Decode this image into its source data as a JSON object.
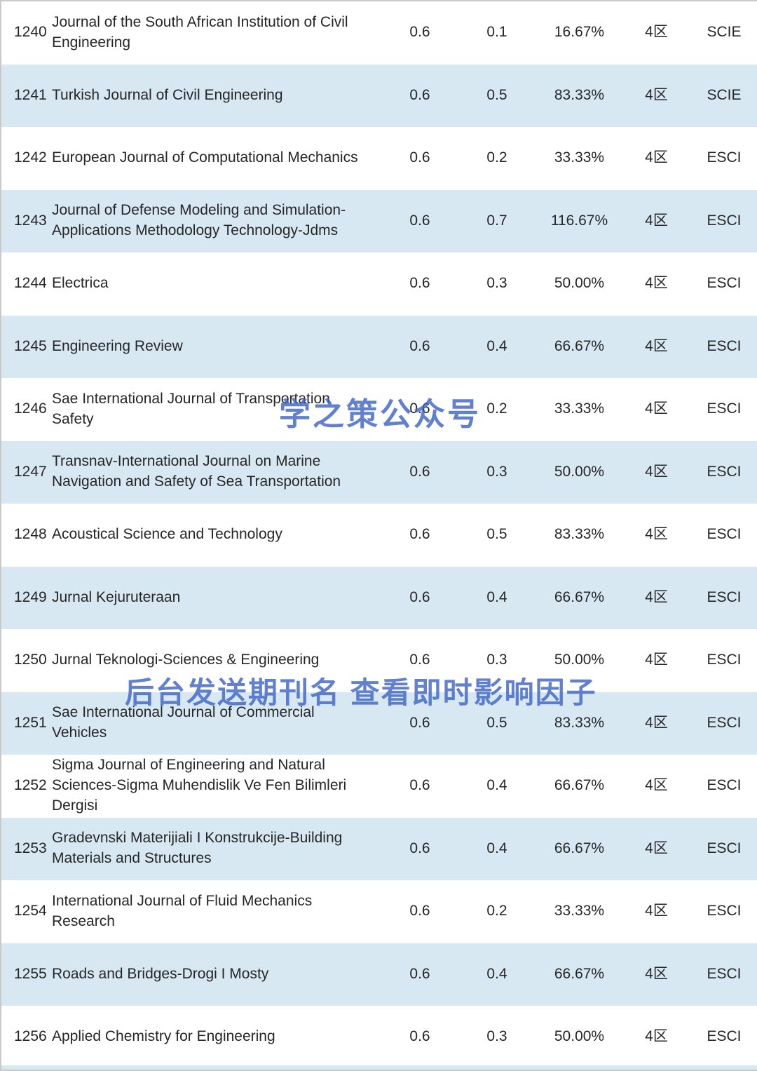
{
  "colors": {
    "stripe_blue": "#d7e8f3",
    "row_white": "#ffffff",
    "watermark_blue": "#3e65c6",
    "text": "#262626"
  },
  "watermarks": {
    "center_watermark": "学之策公众号",
    "lower_watermark": "后台发送期刊名 查看即时影响因子"
  },
  "table": {
    "rows": [
      {
        "rank": "1240",
        "name": "Journal of the South African Institution of Civil Engineering",
        "value1": "0.6",
        "value2": "0.1",
        "percent": "16.67%",
        "zone": "4区",
        "index": "SCIE"
      },
      {
        "rank": "1241",
        "name": "Turkish Journal of Civil Engineering",
        "value1": "0.6",
        "value2": "0.5",
        "percent": "83.33%",
        "zone": "4区",
        "index": "SCIE"
      },
      {
        "rank": "1242",
        "name": "European Journal of Computational Mechanics",
        "value1": "0.6",
        "value2": "0.2",
        "percent": "33.33%",
        "zone": "4区",
        "index": "ESCI"
      },
      {
        "rank": "1243",
        "name": "Journal of Defense Modeling and Simulation-Applications Methodology Technology-Jdms",
        "value1": "0.6",
        "value2": "0.7",
        "percent": "116.67%",
        "zone": "4区",
        "index": "ESCI"
      },
      {
        "rank": "1244",
        "name": "Electrica",
        "value1": "0.6",
        "value2": "0.3",
        "percent": "50.00%",
        "zone": "4区",
        "index": "ESCI"
      },
      {
        "rank": "1245",
        "name": "Engineering Review",
        "value1": "0.6",
        "value2": "0.4",
        "percent": "66.67%",
        "zone": "4区",
        "index": "ESCI"
      },
      {
        "rank": "1246",
        "name": "Sae International Journal of Transportation Safety",
        "value1": "0.6",
        "value2": "0.2",
        "percent": "33.33%",
        "zone": "4区",
        "index": "ESCI"
      },
      {
        "rank": "1247",
        "name": "Transnav-International Journal on Marine Navigation and Safety of Sea Transportation",
        "value1": "0.6",
        "value2": "0.3",
        "percent": "50.00%",
        "zone": "4区",
        "index": "ESCI"
      },
      {
        "rank": "1248",
        "name": "Acoustical Science and Technology",
        "value1": "0.6",
        "value2": "0.5",
        "percent": "83.33%",
        "zone": "4区",
        "index": "ESCI"
      },
      {
        "rank": "1249",
        "name": "Jurnal Kejuruteraan",
        "value1": "0.6",
        "value2": "0.4",
        "percent": "66.67%",
        "zone": "4区",
        "index": "ESCI"
      },
      {
        "rank": "1250",
        "name": "Jurnal Teknologi-Sciences & Engineering",
        "value1": "0.6",
        "value2": "0.3",
        "percent": "50.00%",
        "zone": "4区",
        "index": "ESCI"
      },
      {
        "rank": "1251",
        "name": "Sae International Journal of Commercial Vehicles",
        "value1": "0.6",
        "value2": "0.5",
        "percent": "83.33%",
        "zone": "4区",
        "index": "ESCI"
      },
      {
        "rank": "1252",
        "name": "Sigma Journal of Engineering and Natural Sciences-Sigma Muhendislik Ve Fen Bilimleri Dergisi",
        "value1": "0.6",
        "value2": "0.4",
        "percent": "66.67%",
        "zone": "4区",
        "index": "ESCI"
      },
      {
        "rank": "1253",
        "name": "Gradevnski Materijiali I Konstrukcije-Building Materials and Structures",
        "value1": "0.6",
        "value2": "0.4",
        "percent": "66.67%",
        "zone": "4区",
        "index": "ESCI"
      },
      {
        "rank": "1254",
        "name": "International Journal of Fluid Mechanics Research",
        "value1": "0.6",
        "value2": "0.2",
        "percent": "33.33%",
        "zone": "4区",
        "index": "ESCI"
      },
      {
        "rank": "1255",
        "name": "Roads and Bridges-Drogi I Mosty",
        "value1": "0.6",
        "value2": "0.4",
        "percent": "66.67%",
        "zone": "4区",
        "index": "ESCI"
      },
      {
        "rank": "1256",
        "name": "Applied Chemistry for Engineering",
        "value1": "0.6",
        "value2": "0.3",
        "percent": "50.00%",
        "zone": "4区",
        "index": "ESCI"
      }
    ]
  }
}
